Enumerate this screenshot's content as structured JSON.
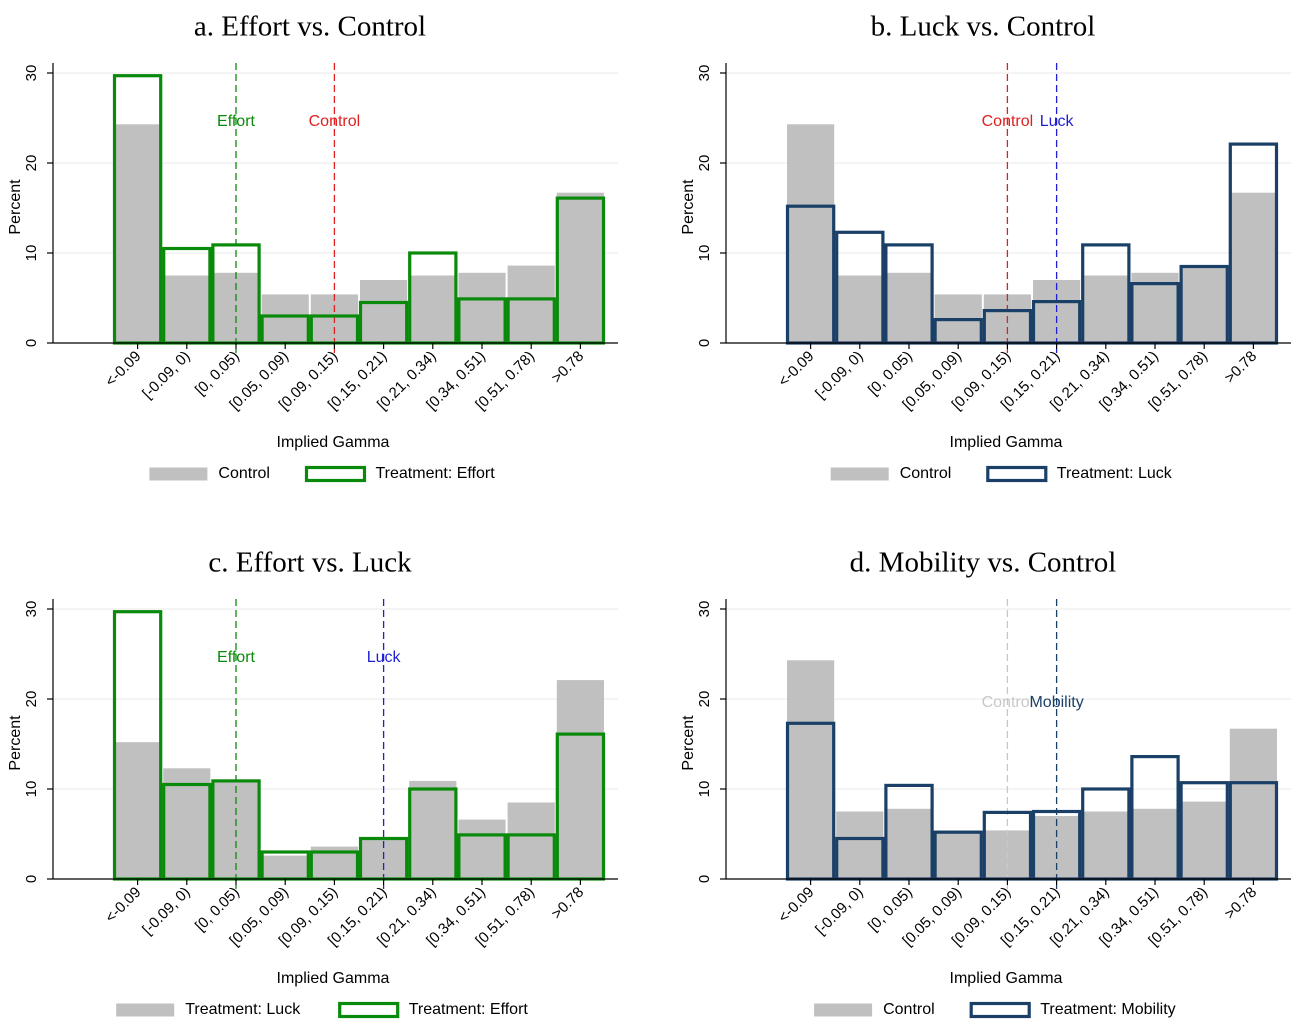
{
  "colors": {
    "background_bar": "#c0c0c0",
    "effort": "#0a8a0a",
    "luck_blue_line": "#1f1fd6",
    "navy": "#1b4068",
    "control_red": "#e02020",
    "control_light": "#c8c8c8",
    "grid": "#e8e8e8"
  },
  "chart_data": [
    {
      "type": "bar",
      "title": "a. Effort vs. Control",
      "xlabel": "Implied Gamma",
      "ylabel": "Percent",
      "ylim": [
        0,
        31
      ],
      "yticks": [
        "0",
        "10",
        "20",
        "30"
      ],
      "categories": [
        "<-0.09",
        "[-0.09, 0)",
        "[0, 0.05)",
        "[0.05, 0.09)",
        "[0.09, 0.15)",
        "[0.15, 0.21)",
        "[0.21, 0.34)",
        "[0.34, 0.51)",
        "[0.51, 0.78)",
        ">0.78"
      ],
      "grid": true,
      "legend_position": "bottom",
      "series": [
        {
          "name": "Control",
          "style": "filled",
          "color": "#c0c0c0",
          "values": [
            24.3,
            7.5,
            7.8,
            5.4,
            5.4,
            7.0,
            7.5,
            7.8,
            8.6,
            16.7
          ]
        },
        {
          "name": "Treatment: Effort",
          "style": "outline",
          "color": "#0a8a0a",
          "values": [
            29.7,
            10.5,
            10.9,
            3.0,
            3.0,
            4.5,
            10.0,
            4.9,
            4.9,
            16.1
          ]
        }
      ],
      "markers": [
        {
          "label": "Effort",
          "x": 2.5,
          "color": "#0a8a0a"
        },
        {
          "label": "Control",
          "x": 4.5,
          "color": "#e02020"
        }
      ],
      "marker_label_y": 24.6
    },
    {
      "type": "bar",
      "title": "b. Luck vs. Control",
      "xlabel": "Implied Gamma",
      "ylabel": "Percent",
      "ylim": [
        0,
        31
      ],
      "yticks": [
        "0",
        "10",
        "20",
        "30"
      ],
      "categories": [
        "<-0.09",
        "[-0.09, 0)",
        "[0, 0.05)",
        "[0.05, 0.09)",
        "[0.09, 0.15)",
        "[0.15, 0.21)",
        "[0.21, 0.34)",
        "[0.34, 0.51)",
        "[0.51, 0.78)",
        ">0.78"
      ],
      "grid": true,
      "legend_position": "bottom",
      "series": [
        {
          "name": "Control",
          "style": "filled",
          "color": "#c0c0c0",
          "values": [
            24.3,
            7.5,
            7.8,
            5.4,
            5.4,
            7.0,
            7.5,
            7.8,
            8.6,
            16.7
          ]
        },
        {
          "name": "Treatment: Luck",
          "style": "outline",
          "color": "#1b4068",
          "values": [
            15.2,
            12.3,
            10.9,
            2.6,
            3.6,
            4.6,
            10.9,
            6.6,
            8.5,
            22.1
          ]
        }
      ],
      "markers": [
        {
          "label": "Control",
          "x": 4.5,
          "color": "#e02020"
        },
        {
          "label": "Luck",
          "x": 5.5,
          "color": "#1f1fd6"
        }
      ],
      "marker_label_y": 24.6
    },
    {
      "type": "bar",
      "title": "c. Effort vs. Luck",
      "xlabel": "Implied Gamma",
      "ylabel": "Percent",
      "ylim": [
        0,
        31
      ],
      "yticks": [
        "0",
        "10",
        "20",
        "30"
      ],
      "categories": [
        "<-0.09",
        "[-0.09, 0)",
        "[0, 0.05)",
        "[0.05, 0.09)",
        "[0.09, 0.15)",
        "[0.15, 0.21)",
        "[0.21, 0.34)",
        "[0.34, 0.51)",
        "[0.51, 0.78)",
        ">0.78"
      ],
      "grid": true,
      "legend_position": "bottom",
      "series": [
        {
          "name": "Treatment: Luck",
          "style": "filled",
          "color": "#c0c0c0",
          "values": [
            15.2,
            12.3,
            10.9,
            2.6,
            3.6,
            4.6,
            10.9,
            6.6,
            8.5,
            22.1
          ]
        },
        {
          "name": "Treatment: Effort",
          "style": "outline",
          "color": "#0a8a0a",
          "values": [
            29.7,
            10.5,
            10.9,
            3.0,
            3.0,
            4.5,
            10.0,
            4.9,
            4.9,
            16.1
          ]
        }
      ],
      "markers": [
        {
          "label": "Effort",
          "x": 2.5,
          "color": "#0a8a0a"
        },
        {
          "label": "Luck",
          "x": 5.5,
          "color": "#1f1fd6"
        }
      ],
      "marker_label_y": 24.6
    },
    {
      "type": "bar",
      "title": "d. Mobility vs. Control",
      "xlabel": "Implied Gamma",
      "ylabel": "Percent",
      "ylim": [
        0,
        31
      ],
      "yticks": [
        "0",
        "10",
        "20",
        "30"
      ],
      "categories": [
        "<-0.09",
        "[-0.09, 0)",
        "[0, 0.05)",
        "[0.05, 0.09)",
        "[0.09, 0.15)",
        "[0.15, 0.21)",
        "[0.21, 0.34)",
        "[0.34, 0.51)",
        "[0.51, 0.78)",
        ">0.78"
      ],
      "grid": true,
      "legend_position": "bottom",
      "series": [
        {
          "name": "Control",
          "style": "filled",
          "color": "#c0c0c0",
          "values": [
            24.3,
            7.5,
            7.8,
            5.4,
            5.4,
            7.0,
            7.5,
            7.8,
            8.6,
            16.7
          ]
        },
        {
          "name": "Treatment: Mobility",
          "style": "outline",
          "color": "#1b4068",
          "values": [
            17.3,
            4.5,
            10.4,
            5.2,
            7.4,
            7.5,
            10.0,
            13.6,
            10.7,
            10.7
          ]
        }
      ],
      "markers": [
        {
          "label": "Control",
          "x": 4.5,
          "color": "#c8c8c8"
        },
        {
          "label": "Mobility",
          "x": 5.5,
          "color": "#1b4068"
        }
      ],
      "marker_label_y": 19.6
    }
  ]
}
